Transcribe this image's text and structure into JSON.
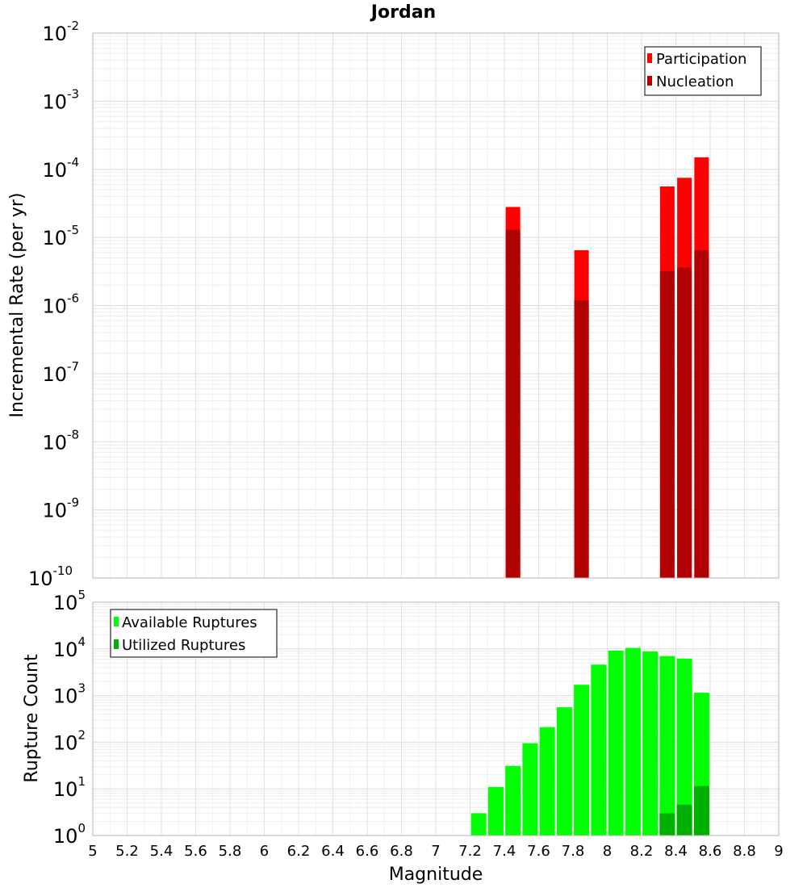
{
  "chart_data": [
    {
      "type": "bar",
      "title": "Jordan",
      "xlabel": "Magnitude",
      "ylabel": "Incremental Rate (per yr)",
      "yscale": "log",
      "xlim": [
        5,
        9
      ],
      "ylim": [
        1e-10,
        0.01
      ],
      "grid": true,
      "legend_position": "top-right",
      "x_ticks": [
        "5",
        "5.2",
        "5.4",
        "5.6",
        "5.8",
        "6",
        "6.2",
        "6.4",
        "6.6",
        "6.8",
        "7",
        "7.2",
        "7.4",
        "7.6",
        "7.8",
        "8",
        "8.2",
        "8.4",
        "8.6",
        "8.8",
        "9"
      ],
      "y_ticks": [
        {
          "base": "10",
          "exp": "-2"
        },
        {
          "base": "10",
          "exp": "-3"
        },
        {
          "base": "10",
          "exp": "-4"
        },
        {
          "base": "10",
          "exp": "-5"
        },
        {
          "base": "10",
          "exp": "-6"
        },
        {
          "base": "10",
          "exp": "-7"
        },
        {
          "base": "10",
          "exp": "-8"
        },
        {
          "base": "10",
          "exp": "-9"
        },
        {
          "base": "10",
          "exp": "-10"
        }
      ],
      "series": [
        {
          "name": "Participation",
          "color": "#ff0000",
          "points": [
            {
              "x": 7.45,
              "y": 2.8e-05
            },
            {
              "x": 7.85,
              "y": 6.5e-06
            },
            {
              "x": 8.35,
              "y": 5.6e-05
            },
            {
              "x": 8.45,
              "y": 7.5e-05
            },
            {
              "x": 8.55,
              "y": 0.00015
            }
          ]
        },
        {
          "name": "Nucleation",
          "color": "#b00000",
          "points": [
            {
              "x": 7.45,
              "y": 1.3e-05
            },
            {
              "x": 7.85,
              "y": 1.2e-06
            },
            {
              "x": 8.35,
              "y": 3.2e-06
            },
            {
              "x": 8.45,
              "y": 3.6e-06
            },
            {
              "x": 8.55,
              "y": 6.5e-06
            }
          ]
        }
      ]
    },
    {
      "type": "bar",
      "xlabel": "Magnitude",
      "ylabel": "Rupture Count",
      "yscale": "log",
      "xlim": [
        5,
        9
      ],
      "ylim": [
        1,
        100000
      ],
      "grid": true,
      "legend_position": "top-left",
      "x_ticks": [
        "5",
        "5.2",
        "5.4",
        "5.6",
        "5.8",
        "6",
        "6.2",
        "6.4",
        "6.6",
        "6.8",
        "7",
        "7.2",
        "7.4",
        "7.6",
        "7.8",
        "8",
        "8.2",
        "8.4",
        "8.6",
        "8.8",
        "9"
      ],
      "y_ticks": [
        {
          "base": "10",
          "exp": "5"
        },
        {
          "base": "10",
          "exp": "4"
        },
        {
          "base": "10",
          "exp": "3"
        },
        {
          "base": "10",
          "exp": "2"
        },
        {
          "base": "10",
          "exp": "1"
        },
        {
          "base": "10",
          "exp": "0"
        }
      ],
      "series": [
        {
          "name": "Available Ruptures",
          "color": "#00ff00",
          "points": [
            {
              "x": 7.15,
              "y": 1
            },
            {
              "x": 7.25,
              "y": 3
            },
            {
              "x": 7.35,
              "y": 11
            },
            {
              "x": 7.45,
              "y": 31
            },
            {
              "x": 7.55,
              "y": 95
            },
            {
              "x": 7.65,
              "y": 210
            },
            {
              "x": 7.75,
              "y": 560
            },
            {
              "x": 7.85,
              "y": 1700
            },
            {
              "x": 7.95,
              "y": 4600
            },
            {
              "x": 8.05,
              "y": 9200
            },
            {
              "x": 8.15,
              "y": 10500
            },
            {
              "x": 8.25,
              "y": 8800
            },
            {
              "x": 8.35,
              "y": 7000
            },
            {
              "x": 8.45,
              "y": 6200
            },
            {
              "x": 8.55,
              "y": 1150
            }
          ]
        },
        {
          "name": "Utilized Ruptures",
          "color": "#00b000",
          "points": [
            {
              "x": 7.45,
              "y": 1
            },
            {
              "x": 7.85,
              "y": 1
            },
            {
              "x": 8.35,
              "y": 3
            },
            {
              "x": 8.45,
              "y": 4.6
            },
            {
              "x": 8.55,
              "y": 11.5
            }
          ]
        }
      ]
    }
  ]
}
